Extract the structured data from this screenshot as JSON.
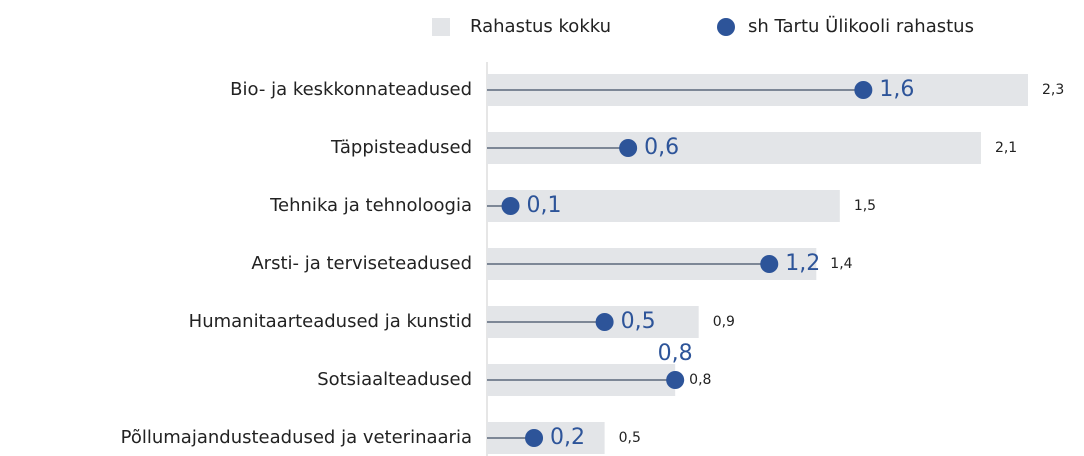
{
  "chart_data": {
    "type": "bar",
    "orientation": "horizontal",
    "categories": [
      "Bio- ja keskkonnateadused",
      "Täppisteadused",
      "Tehnika ja tehnoloogia",
      "Arsti- ja terviseteadused",
      "Humanitaarteadused ja kunstid",
      "Sotsiaalteadused",
      "Põllumajandusteadused ja veterinaaria"
    ],
    "series": [
      {
        "name": "Rahastus kokku",
        "color": "#e3e5e8",
        "values": [
          2.3,
          2.1,
          1.5,
          1.4,
          0.9,
          0.8,
          0.5
        ],
        "value_labels": [
          "2,3",
          "2,1",
          "1,5",
          "1,4",
          "0,9",
          "0,8",
          "0,5"
        ]
      },
      {
        "name": "sh Tartu Ülikooli rahastus",
        "color": "#2d5499",
        "values": [
          1.6,
          0.6,
          0.1,
          1.2,
          0.5,
          0.8,
          0.2
        ],
        "value_labels": [
          "1,6",
          "0,6",
          "0,1",
          "1,2",
          "0,5",
          "0,8",
          "0,2"
        ]
      }
    ],
    "legend": "top"
  }
}
